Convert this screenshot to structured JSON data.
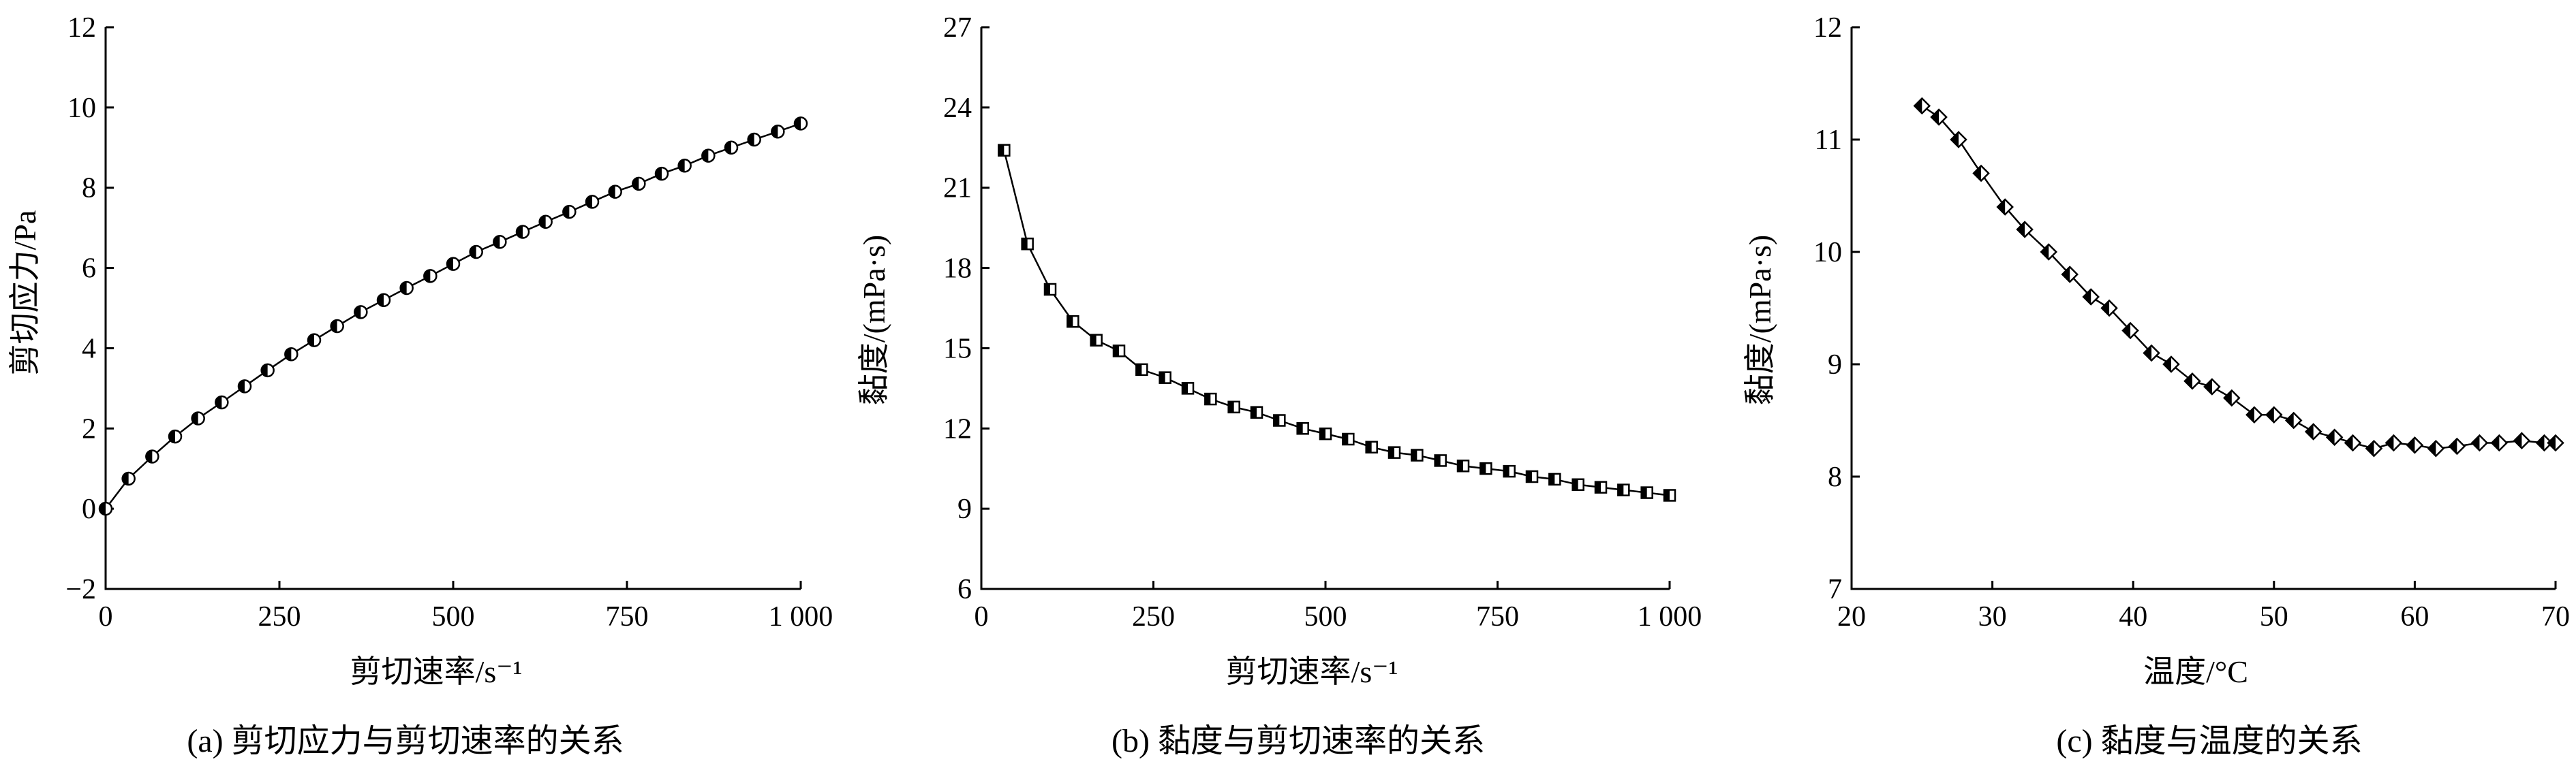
{
  "chart_data": [
    {
      "type": "line",
      "marker": "half-filled-circle",
      "xlabel": "剪切速率/s⁻¹",
      "ylabel": "剪切应力/Pa",
      "caption": "(a) 剪切应力与剪切速率的关系",
      "xlim": [
        0,
        1000
      ],
      "ylim": [
        -2,
        12
      ],
      "xticks": [
        0,
        250,
        500,
        750,
        1000
      ],
      "xtick_labels": [
        "0",
        "250",
        "500",
        "750",
        "1 000"
      ],
      "yticks": [
        -2,
        0,
        2,
        4,
        6,
        8,
        10,
        12
      ],
      "ytick_labels": [
        "−2",
        "0",
        "2",
        "4",
        "6",
        "8",
        "10",
        "12"
      ],
      "grid": false,
      "series": [
        {
          "x": [
            0,
            33,
            67,
            100,
            133,
            167,
            200,
            233,
            267,
            300,
            333,
            367,
            400,
            433,
            467,
            500,
            533,
            567,
            600,
            633,
            667,
            700,
            733,
            767,
            800,
            833,
            867,
            900,
            933,
            967,
            1000
          ],
          "y": [
            0,
            0.75,
            1.3,
            1.8,
            2.25,
            2.65,
            3.05,
            3.45,
            3.85,
            4.2,
            4.55,
            4.9,
            5.2,
            5.5,
            5.8,
            6.1,
            6.4,
            6.65,
            6.9,
            7.15,
            7.4,
            7.65,
            7.9,
            8.1,
            8.35,
            8.55,
            8.8,
            9.0,
            9.2,
            9.4,
            9.6
          ]
        }
      ]
    },
    {
      "type": "line",
      "marker": "half-filled-square",
      "xlabel": "剪切速率/s⁻¹",
      "ylabel": "黏度/(mPa·s)",
      "caption": "(b) 黏度与剪切速率的关系",
      "xlim": [
        0,
        1000
      ],
      "ylim": [
        6,
        27
      ],
      "xticks": [
        0,
        250,
        500,
        750,
        1000
      ],
      "xtick_labels": [
        "0",
        "250",
        "500",
        "750",
        "1 000"
      ],
      "yticks": [
        6,
        9,
        12,
        15,
        18,
        21,
        24,
        27
      ],
      "ytick_labels": [
        "6",
        "9",
        "12",
        "15",
        "18",
        "21",
        "24",
        "27"
      ],
      "grid": false,
      "series": [
        {
          "x": [
            33,
            67,
            100,
            133,
            167,
            200,
            233,
            267,
            300,
            333,
            367,
            400,
            433,
            467,
            500,
            533,
            567,
            600,
            633,
            667,
            700,
            733,
            767,
            800,
            833,
            867,
            900,
            933,
            967,
            1000
          ],
          "y": [
            22.4,
            18.9,
            17.2,
            16.0,
            15.3,
            14.9,
            14.2,
            13.9,
            13.5,
            13.1,
            12.8,
            12.6,
            12.3,
            12.0,
            11.8,
            11.6,
            11.3,
            11.1,
            11.0,
            10.8,
            10.6,
            10.5,
            10.4,
            10.2,
            10.1,
            9.9,
            9.8,
            9.7,
            9.6,
            9.5
          ]
        }
      ]
    },
    {
      "type": "line",
      "marker": "half-filled-diamond",
      "xlabel": "温度/°C",
      "ylabel": "黏度/(mPa·s)",
      "caption": "(c) 黏度与温度的关系",
      "xlim": [
        20,
        70
      ],
      "ylim": [
        7,
        12
      ],
      "xticks": [
        20,
        30,
        40,
        50,
        60,
        70
      ],
      "xtick_labels": [
        "20",
        "30",
        "40",
        "50",
        "60",
        "70"
      ],
      "yticks": [
        7,
        8,
        9,
        10,
        11,
        12
      ],
      "ytick_labels": [
        "7",
        "8",
        "9",
        "10",
        "11",
        "12"
      ],
      "grid": false,
      "series": [
        {
          "x": [
            25,
            26.2,
            27.6,
            29.2,
            30.9,
            32.3,
            34.0,
            35.5,
            37.0,
            38.3,
            39.8,
            41.3,
            42.7,
            44.2,
            45.6,
            47.0,
            48.6,
            50.0,
            51.4,
            52.8,
            54.3,
            55.6,
            57.1,
            58.5,
            60.0,
            61.5,
            63.0,
            64.6,
            66.0,
            67.6,
            69.2,
            70.0
          ],
          "y": [
            11.3,
            11.2,
            11.0,
            10.7,
            10.4,
            10.2,
            10.0,
            9.8,
            9.6,
            9.5,
            9.3,
            9.1,
            9.0,
            8.85,
            8.8,
            8.7,
            8.55,
            8.55,
            8.5,
            8.4,
            8.35,
            8.3,
            8.25,
            8.3,
            8.28,
            8.25,
            8.27,
            8.3,
            8.3,
            8.32,
            8.3,
            8.3
          ]
        }
      ]
    }
  ]
}
